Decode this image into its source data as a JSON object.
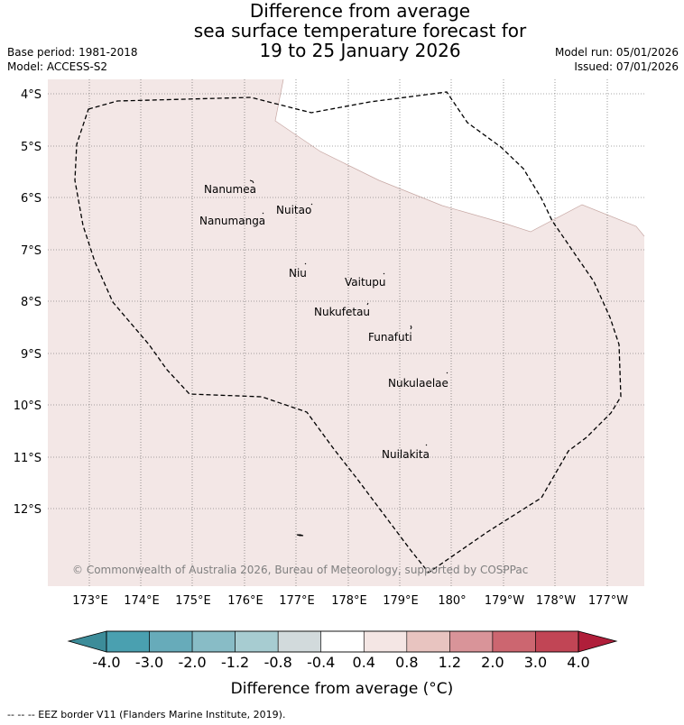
{
  "title": {
    "line1": "Difference from average",
    "line2": "sea surface temperature forecast for",
    "line3": "19 to 25 January 2026"
  },
  "meta": {
    "base_period": "Base period: 1981-2018",
    "model": "Model: ACCESS-S2",
    "model_run": "Model run: 05/01/2026",
    "issued": "Issued: 07/01/2026"
  },
  "map": {
    "lat_labels": [
      "4°S",
      "5°S",
      "6°S",
      "7°S",
      "8°S",
      "9°S",
      "10°S",
      "11°S",
      "12°S"
    ],
    "lon_labels": [
      "173°E",
      "174°E",
      "175°E",
      "176°E",
      "177°E",
      "178°E",
      "179°E",
      "180°",
      "179°W",
      "178°W",
      "177°W"
    ],
    "islands": [
      "Nanumea",
      "Nuitao",
      "Nanumanga",
      "Niu",
      "Vaitupu",
      "Nukufetau",
      "Funafuti",
      "Nukulaelae",
      "Nuilakita"
    ],
    "copyright": "© Commonwealth of Australia 2026, Bureau of Meteorology, supported by COSPPac",
    "fill_color": "#f3e7e6",
    "coast_color": "#c7a8a4"
  },
  "colorbar": {
    "ticks": [
      "-4.0",
      "-3.0",
      "-2.0",
      "-1.2",
      "-0.8",
      "-0.4",
      "0.4",
      "0.8",
      "1.2",
      "2.0",
      "3.0",
      "4.0"
    ],
    "colors": [
      "#4aa0b0",
      "#67abba",
      "#88bcc6",
      "#a7ccd1",
      "#d2dadc",
      "#ffffff",
      "#f4e6e4",
      "#e8c4c0",
      "#d99499",
      "#cc6670",
      "#c14555"
    ],
    "under_color": "#3c8c99",
    "over_color": "#b01e3a",
    "label": "Difference from average (°C)"
  },
  "footer": "--  --  -- EEZ border V11 (Flanders Marine Institute, 2019)."
}
